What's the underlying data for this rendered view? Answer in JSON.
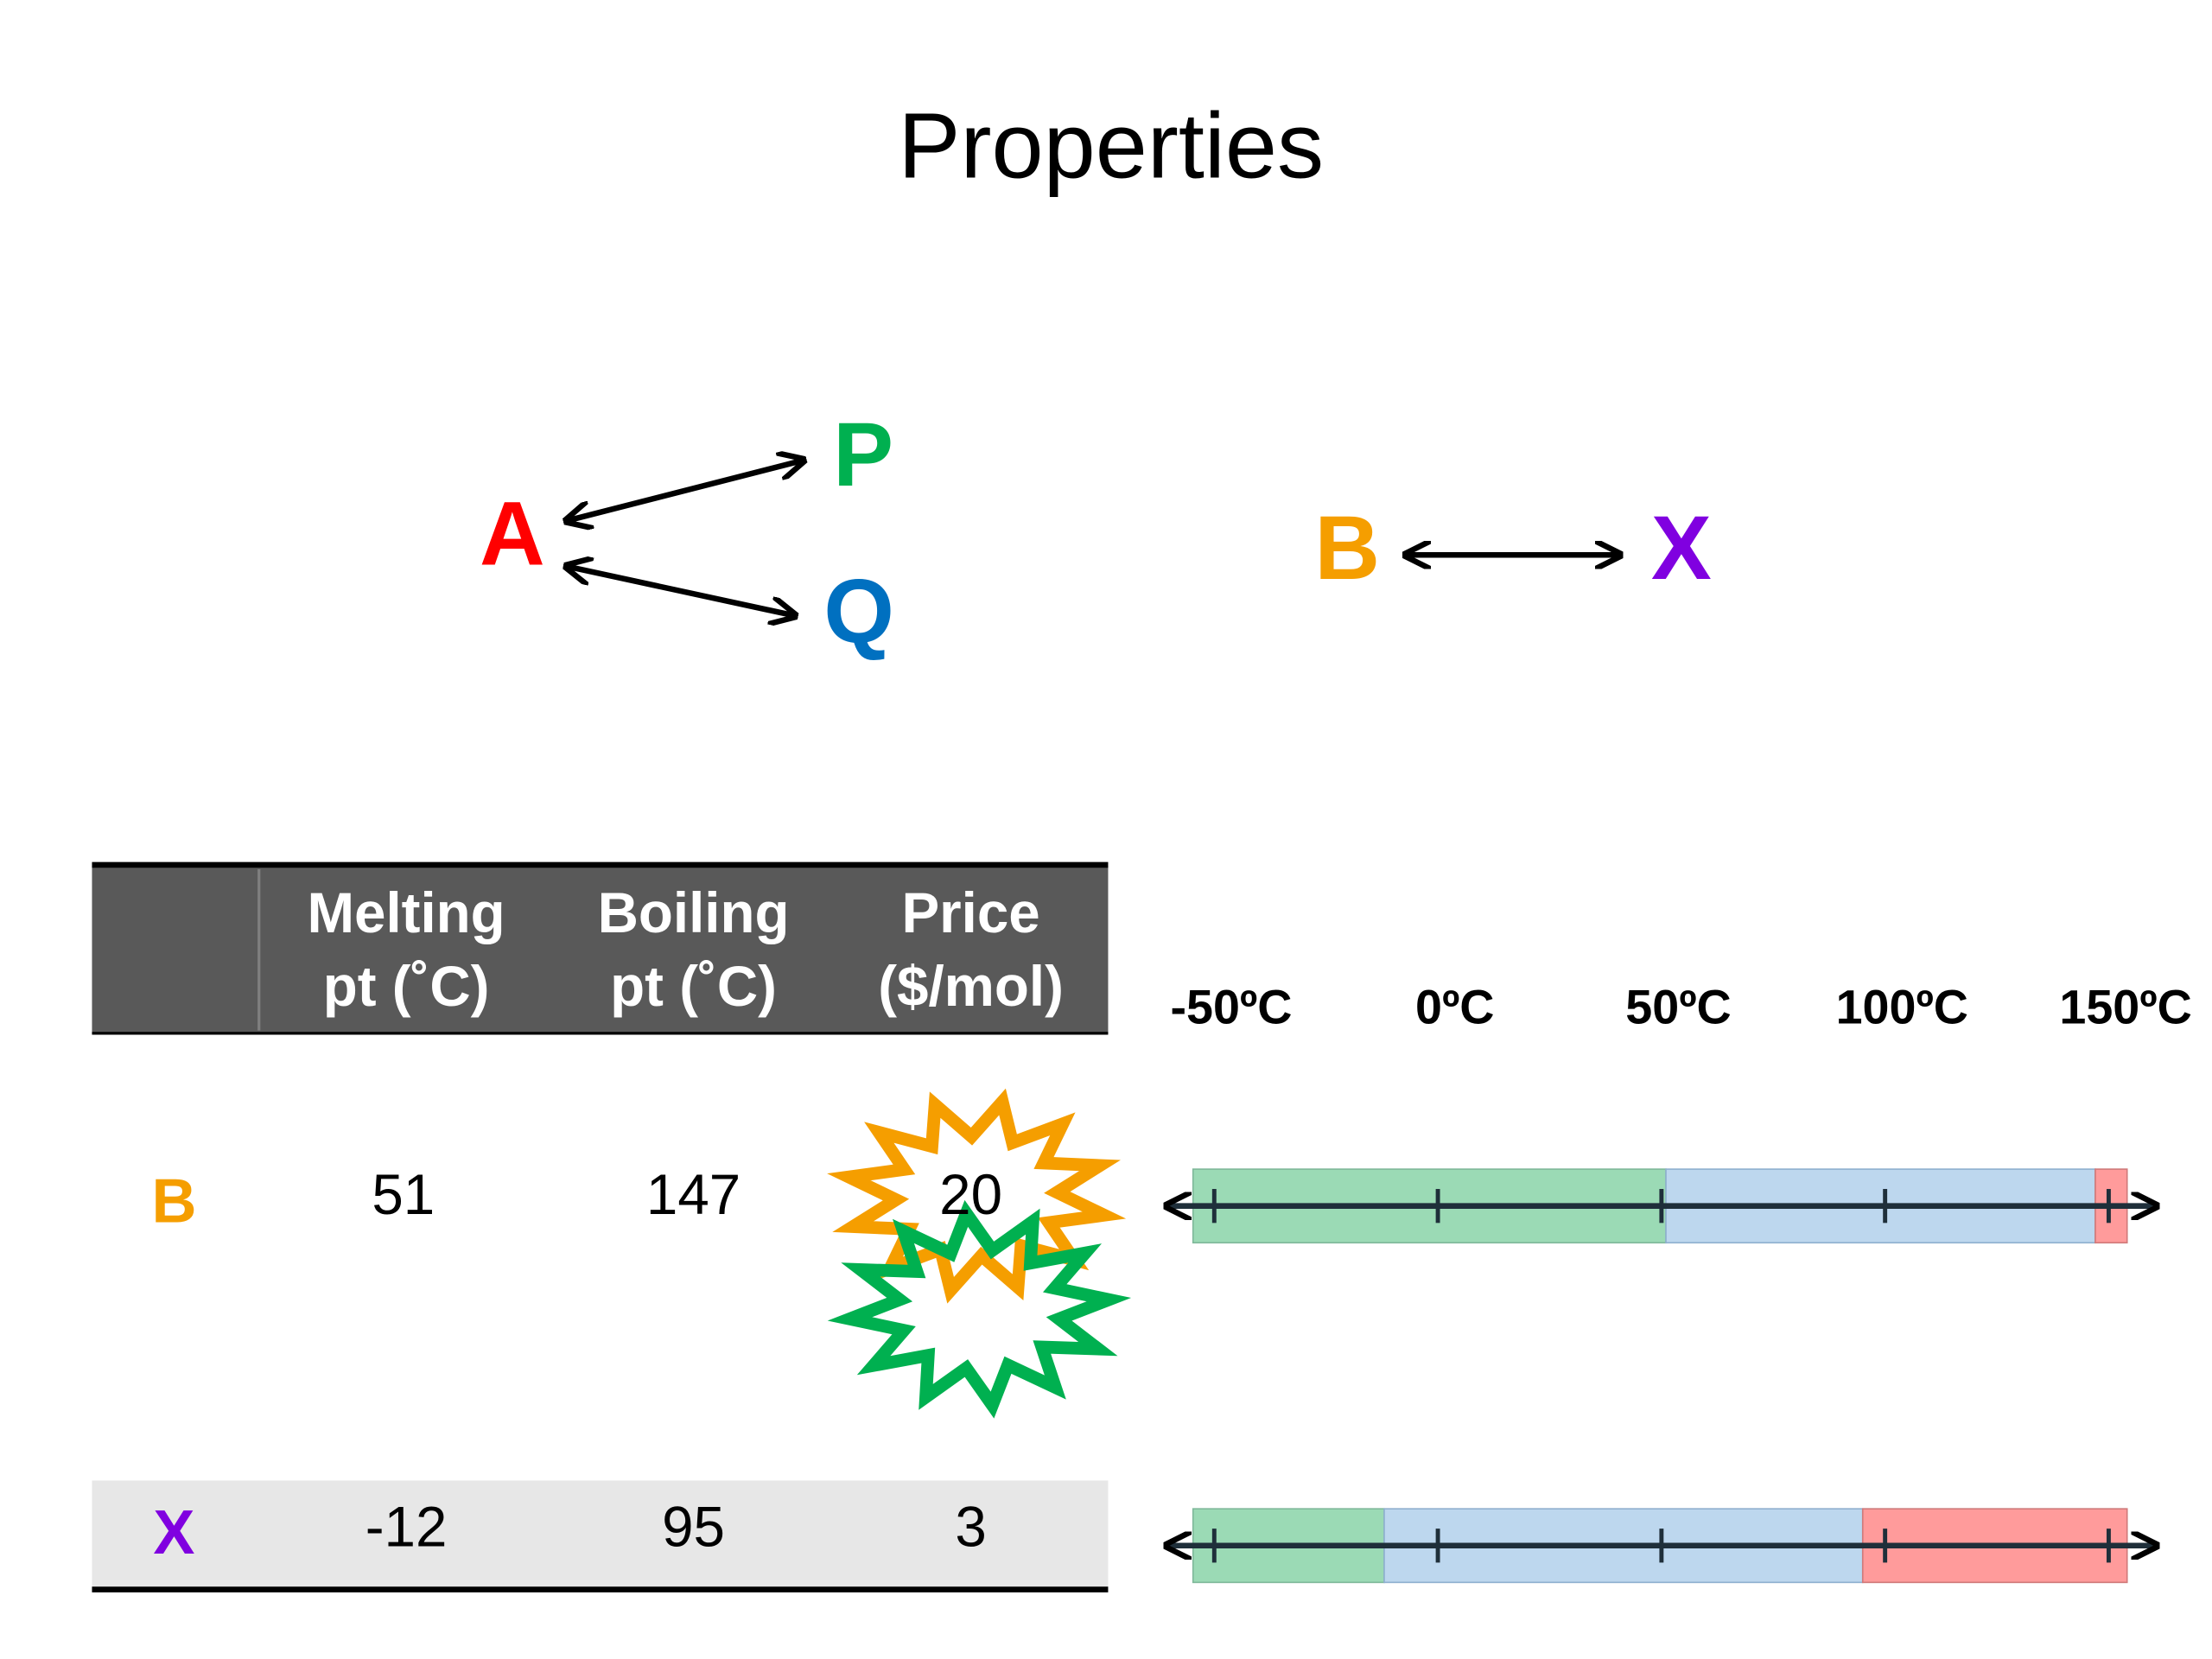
{
  "title": "Properties",
  "reactions": {
    "left": {
      "reactant": "A",
      "products": [
        "P",
        "Q"
      ]
    },
    "right": {
      "reactant": "B",
      "product": "X"
    }
  },
  "table": {
    "headers": [
      [
        "Melting",
        "pt (˚C)"
      ],
      [
        "Boiling",
        "pt (˚C)"
      ],
      [
        "Price",
        "($/mol)"
      ]
    ],
    "rows": [
      {
        "name": "B",
        "melting": 51,
        "boiling": 147,
        "price": 20
      },
      {
        "name": "X",
        "melting": -12,
        "boiling": 95,
        "price": 3
      }
    ]
  },
  "temperature_scale": {
    "ticks": [
      {
        "value": -50,
        "label": "-50ºC"
      },
      {
        "value": 0,
        "label": "0ºC"
      },
      {
        "value": 50,
        "label": "50ºC"
      },
      {
        "value": 100,
        "label": "100ºC"
      },
      {
        "value": 150,
        "label": "150ºC"
      }
    ]
  }
}
